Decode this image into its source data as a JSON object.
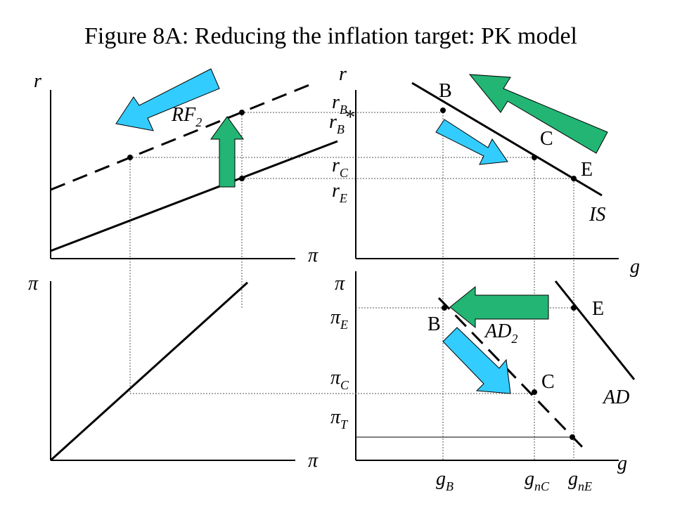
{
  "title": "Figure 8A: Reducing the inflation target: PK model",
  "colors": {
    "blue_arrow": "#33ccff",
    "green_arrow": "#22b573",
    "arrow_outline": "#000000"
  },
  "top_left": {
    "y_label": "r",
    "x_label_glyph": "π",
    "curve_label_base": "RF",
    "curve_label_sub": "2"
  },
  "top_right": {
    "y_label": "r",
    "x_label": "g",
    "ticks": [
      {
        "base": "r",
        "sub": "B",
        "sup": ""
      },
      {
        "base": "r",
        "sub": "B",
        "sup": "*"
      },
      {
        "base": "r",
        "sub": "C",
        "sup": ""
      },
      {
        "base": "r",
        "sub": "E",
        "sup": ""
      }
    ],
    "points": {
      "B": "B",
      "C": "C",
      "E": "E"
    },
    "curve_label": "IS"
  },
  "bottom_left": {
    "y_label_glyph": "π",
    "x_label_glyph": "π"
  },
  "bottom_right": {
    "y_label_glyph": "π",
    "x_label": "g",
    "ticks": [
      {
        "base": "π",
        "sub": "E"
      },
      {
        "base": "π",
        "sub": "C"
      },
      {
        "base": "π",
        "sub": "T"
      }
    ],
    "points": {
      "B": "B",
      "C": "C",
      "E": "E"
    },
    "curve_label_AD": "AD",
    "curve_label_AD2_base": "AD",
    "curve_label_AD2_sub": "2",
    "x_ticks": [
      {
        "base": "g",
        "sub": "B"
      },
      {
        "base": "g",
        "sub": "nC"
      },
      {
        "base": "g",
        "sub": "nE"
      }
    ]
  }
}
